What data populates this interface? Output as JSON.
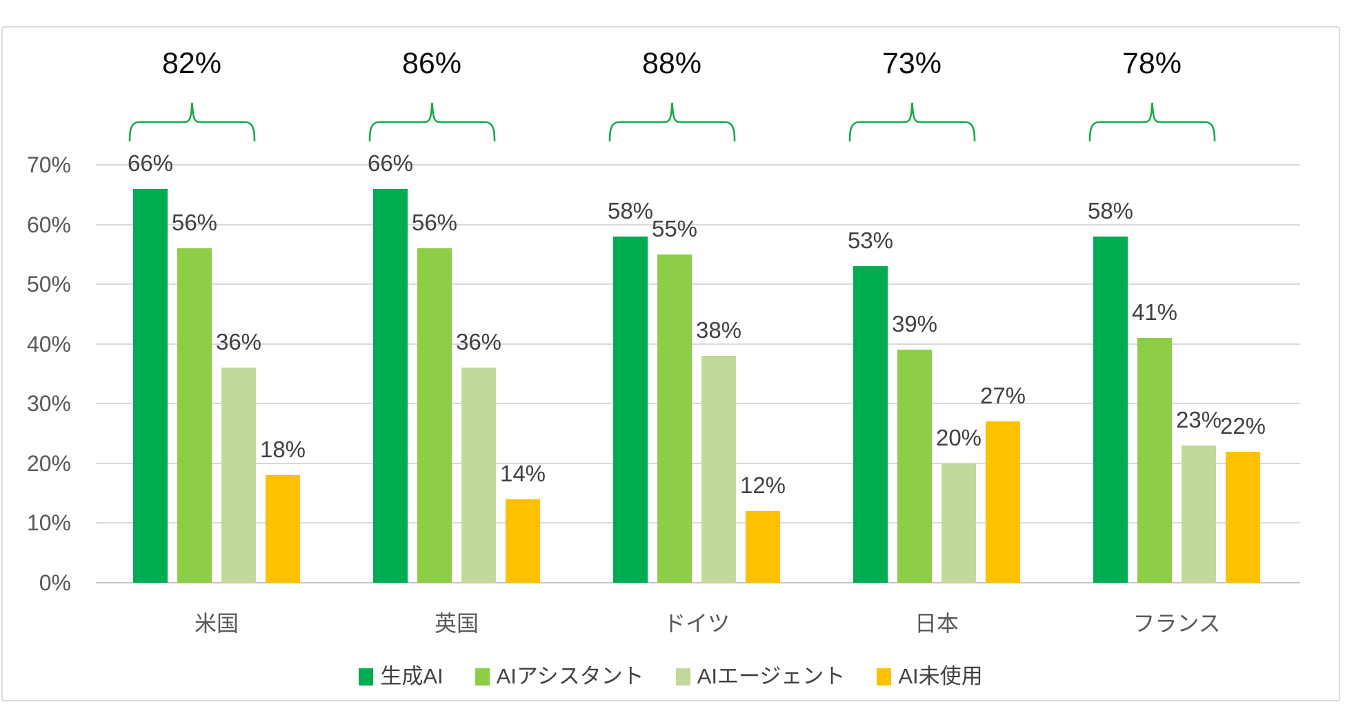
{
  "chart_data": {
    "type": "bar",
    "title": "",
    "categories": [
      "米国",
      "英国",
      "ドイツ",
      "日本",
      "フランス"
    ],
    "series": [
      {
        "name": "生成AI",
        "color": "#00AC50",
        "values": [
          66,
          66,
          58,
          53,
          58
        ]
      },
      {
        "name": "AIアシスタント",
        "color": "#8DCE46",
        "values": [
          56,
          56,
          55,
          39,
          41
        ]
      },
      {
        "name": "AIエージェント",
        "color": "#C3D89C",
        "values": [
          36,
          36,
          38,
          20,
          23
        ]
      },
      {
        "name": "AI未使用",
        "color": "#FFC000",
        "values": [
          18,
          14,
          12,
          27,
          22
        ]
      }
    ],
    "group_totals": [
      82,
      86,
      88,
      73,
      78
    ],
    "value_suffix": "%",
    "xlabel": "",
    "ylabel": "",
    "ylim": [
      0,
      70
    ],
    "ytick_step": 10,
    "yticks": [
      "0%",
      "10%",
      "20%",
      "30%",
      "40%",
      "50%",
      "60%",
      "70%"
    ],
    "grid": true,
    "legend_position": "bottom",
    "data_labels": "outside-end"
  },
  "style": {
    "bracket_color": "#16A94F",
    "grid_color": "#D9D9D9",
    "axis_line_color": "#C6C6C6",
    "tick_text_color": "#595959",
    "data_label_color": "#404040",
    "category_text_color": "#595959",
    "total_text_color": "#0D0D0D",
    "legend_text_color": "#404040",
    "frame_border_color": "#DCDCDC"
  }
}
